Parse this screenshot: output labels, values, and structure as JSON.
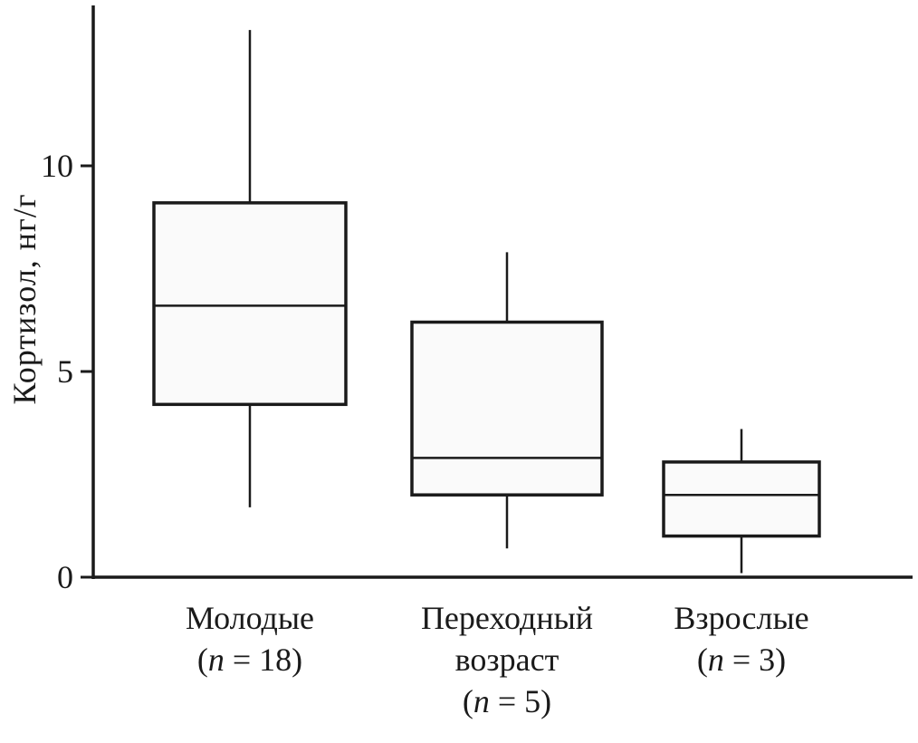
{
  "chart_data": {
    "type": "boxplot",
    "title": "",
    "xlabel": "",
    "ylabel": "Кортизол, нг/г",
    "yticks": [
      0,
      5,
      10
    ],
    "ylim": [
      0,
      14
    ],
    "grid": false,
    "categories": [
      {
        "name_lines": [
          "Молодые"
        ],
        "n_label_prefix": "(",
        "n_symbol": "n",
        "n_value": " = 18)"
      },
      {
        "name_lines": [
          "Переходный",
          "возраст"
        ],
        "n_label_prefix": "(",
        "n_symbol": "n",
        "n_value": " = 5)"
      },
      {
        "name_lines": [
          "Взрослые"
        ],
        "n_label_prefix": "(",
        "n_symbol": "n",
        "n_value": " = 3)"
      }
    ],
    "series": [
      {
        "name": "Молодые",
        "min": 1.7,
        "q1": 4.2,
        "median": 6.6,
        "q3": 9.1,
        "max": 13.3
      },
      {
        "name": "Переходный возраст",
        "min": 0.7,
        "q1": 2.0,
        "median": 2.9,
        "q3": 6.2,
        "max": 7.9
      },
      {
        "name": "Взрослые",
        "min": 0.1,
        "q1": 1.0,
        "median": 2.0,
        "q3": 2.8,
        "max": 3.6
      }
    ]
  },
  "colors": {
    "stroke": "#1a1a1a",
    "box_fill": "#fafafa",
    "background": "#ffffff"
  }
}
